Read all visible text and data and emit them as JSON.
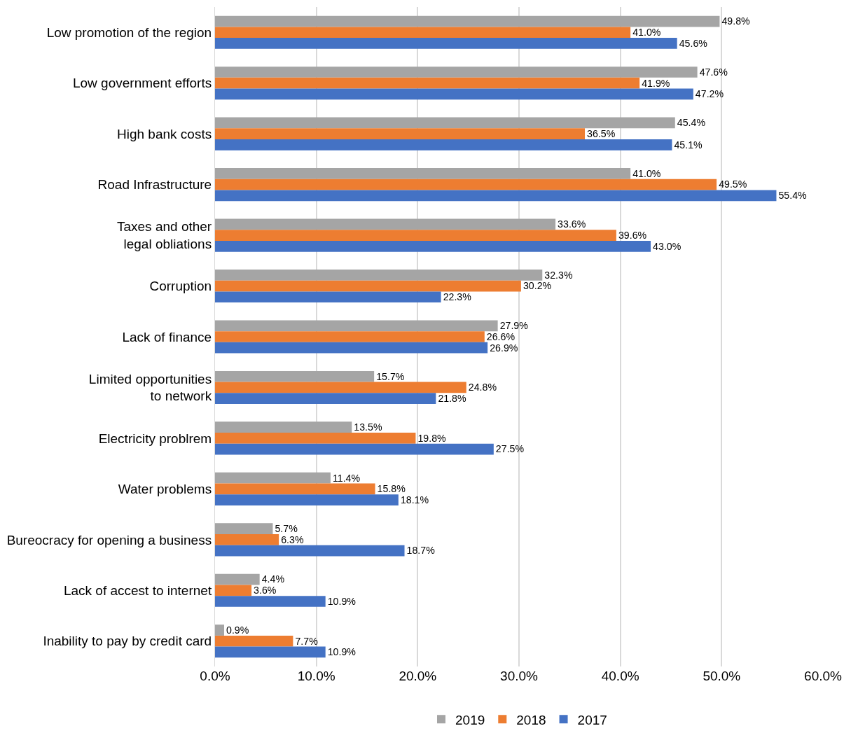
{
  "chart_data": {
    "type": "bar",
    "orientation": "horizontal",
    "categories": [
      "Low promotion of the region",
      "Low government efforts",
      "High bank costs",
      "Road Infrastructure",
      "Taxes and other\nlegal obliations",
      "Corruption",
      "Lack of finance",
      "Limited opportunities\nto network",
      "Electricity problrem",
      "Water problems",
      "Bureocracy for opening a business",
      "Lack of accest to internet",
      "Inability to pay by credit card"
    ],
    "series": [
      {
        "name": "2019",
        "color": "#a5a5a5",
        "values": [
          49.8,
          47.6,
          45.4,
          41.0,
          33.6,
          32.3,
          27.9,
          15.7,
          13.5,
          11.4,
          5.7,
          4.4,
          0.9
        ],
        "value_labels": [
          "49.8%",
          "47.6%",
          "45.4%",
          "41.0%",
          "33.6%",
          "32.3%",
          "27.9%",
          "15.7%",
          "13.5%",
          "11.4%",
          "5.7%",
          "4.4%",
          "0.9%"
        ]
      },
      {
        "name": "2018",
        "color": "#ed7d31",
        "values": [
          41.0,
          41.9,
          36.5,
          49.5,
          39.6,
          30.2,
          26.6,
          24.8,
          19.8,
          15.8,
          6.3,
          3.6,
          7.7
        ],
        "value_labels": [
          "41.0%",
          "41.9%",
          "36.5%",
          "49.5%",
          "39.6%",
          "30.2%",
          "26.6%",
          "24.8%",
          "19.8%",
          "15.8%",
          "6.3%",
          "3.6%",
          "7.7%"
        ]
      },
      {
        "name": "2017",
        "color": "#4472c4",
        "values": [
          45.6,
          47.2,
          45.1,
          55.4,
          43.0,
          22.3,
          26.9,
          21.8,
          27.5,
          18.1,
          18.7,
          10.9,
          10.9
        ],
        "value_labels": [
          "45.6%",
          "47.2%",
          "45.1%",
          "55.4%",
          "43.0%",
          "22.3%",
          "26.9%",
          "21.8%",
          "27.5%",
          "18.1%",
          "18.7%",
          "10.9%",
          "10.9%"
        ]
      }
    ],
    "xlim": [
      0,
      60
    ],
    "xticks": [
      {
        "value": 0,
        "label": "0.0%"
      },
      {
        "value": 10,
        "label": "10.0%"
      },
      {
        "value": 20,
        "label": "20.0%"
      },
      {
        "value": 30,
        "label": "30.0%"
      },
      {
        "value": 40,
        "label": "40.0%"
      },
      {
        "value": 50,
        "label": "50.0%"
      },
      {
        "value": 60,
        "label": "60.0%"
      }
    ],
    "grid": "x",
    "legend": "bottom"
  }
}
